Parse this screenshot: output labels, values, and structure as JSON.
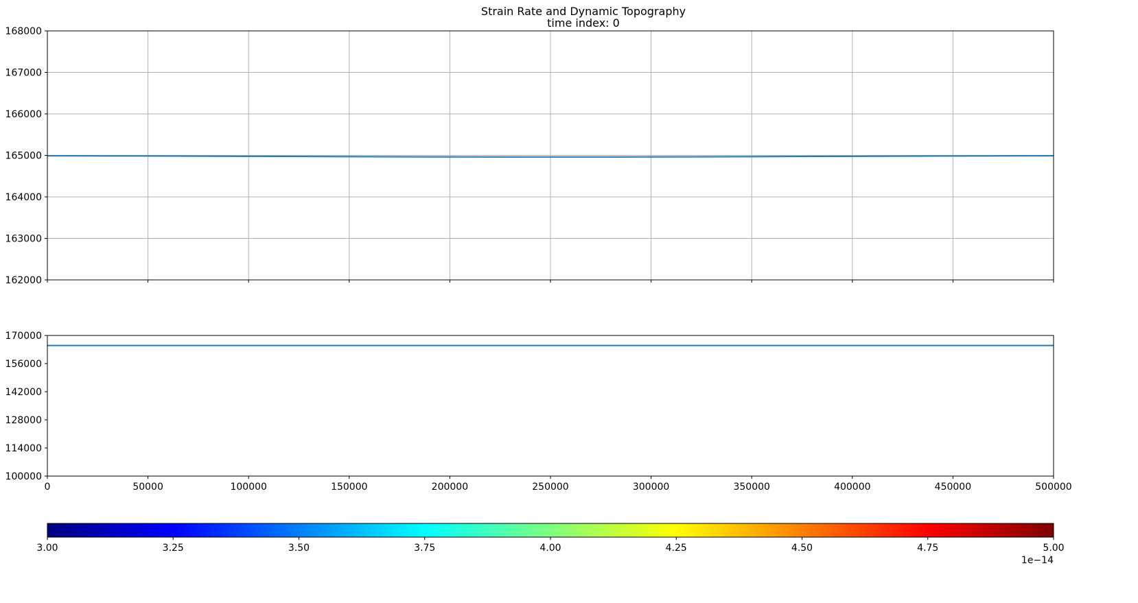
{
  "figure": {
    "title_line1": "Strain Rate and Dynamic Topography",
    "title_line2": "time index: 0"
  },
  "chart_data": [
    {
      "type": "line",
      "name": "top-panel",
      "title": "",
      "xlabel": "",
      "ylabel": "",
      "xlim": [
        0,
        500000
      ],
      "ylim": [
        162000,
        168000
      ],
      "grid": true,
      "x_ticks": [
        0,
        50000,
        100000,
        150000,
        200000,
        250000,
        300000,
        350000,
        400000,
        450000,
        500000
      ],
      "x_tick_labels_visible": false,
      "y_ticks": [
        162000,
        163000,
        164000,
        165000,
        166000,
        167000,
        168000
      ],
      "y_tick_labels": [
        "162000",
        "163000",
        "164000",
        "165000",
        "166000",
        "167000",
        "168000"
      ],
      "line_color": "#1f77b4",
      "series": [
        {
          "x": [
            0,
            50000,
            100000,
            150000,
            200000,
            250000,
            300000,
            350000,
            400000,
            450000,
            500000
          ],
          "y": [
            164990,
            164985,
            164978,
            164970,
            164962,
            164960,
            164962,
            164970,
            164978,
            164985,
            164990
          ]
        }
      ]
    },
    {
      "type": "line",
      "name": "bottom-panel",
      "title": "",
      "xlabel": "",
      "ylabel": "",
      "xlim": [
        0,
        500000
      ],
      "ylim": [
        100000,
        170000
      ],
      "grid": false,
      "x_ticks": [
        0,
        50000,
        100000,
        150000,
        200000,
        250000,
        300000,
        350000,
        400000,
        450000,
        500000
      ],
      "x_tick_labels": [
        "0",
        "50000",
        "100000",
        "150000",
        "200000",
        "250000",
        "300000",
        "350000",
        "400000",
        "450000",
        "500000"
      ],
      "y_ticks": [
        100000,
        114000,
        128000,
        142000,
        156000,
        170000
      ],
      "y_tick_labels": [
        "100000",
        "114000",
        "128000",
        "142000",
        "156000",
        "170000"
      ],
      "line_color": "#1f77b4",
      "series": [
        {
          "x": [
            0,
            500000
          ],
          "y": [
            165000,
            165000
          ]
        }
      ]
    }
  ],
  "colorbar": {
    "colormap": "jet",
    "vmin": 3.0,
    "vmax": 5.0,
    "ticks": [
      3.0,
      3.25,
      3.5,
      3.75,
      4.0,
      4.25,
      4.5,
      4.75,
      5.0
    ],
    "tick_labels": [
      "3.00",
      "3.25",
      "3.50",
      "3.75",
      "4.00",
      "4.25",
      "4.50",
      "4.75",
      "5.00"
    ],
    "offset_text": "1e−14",
    "colors": [
      "#00007f",
      "#0000ff",
      "#007fff",
      "#00ffff",
      "#7fff7f",
      "#ffff00",
      "#ff7f00",
      "#ff0000",
      "#7f0000"
    ]
  }
}
